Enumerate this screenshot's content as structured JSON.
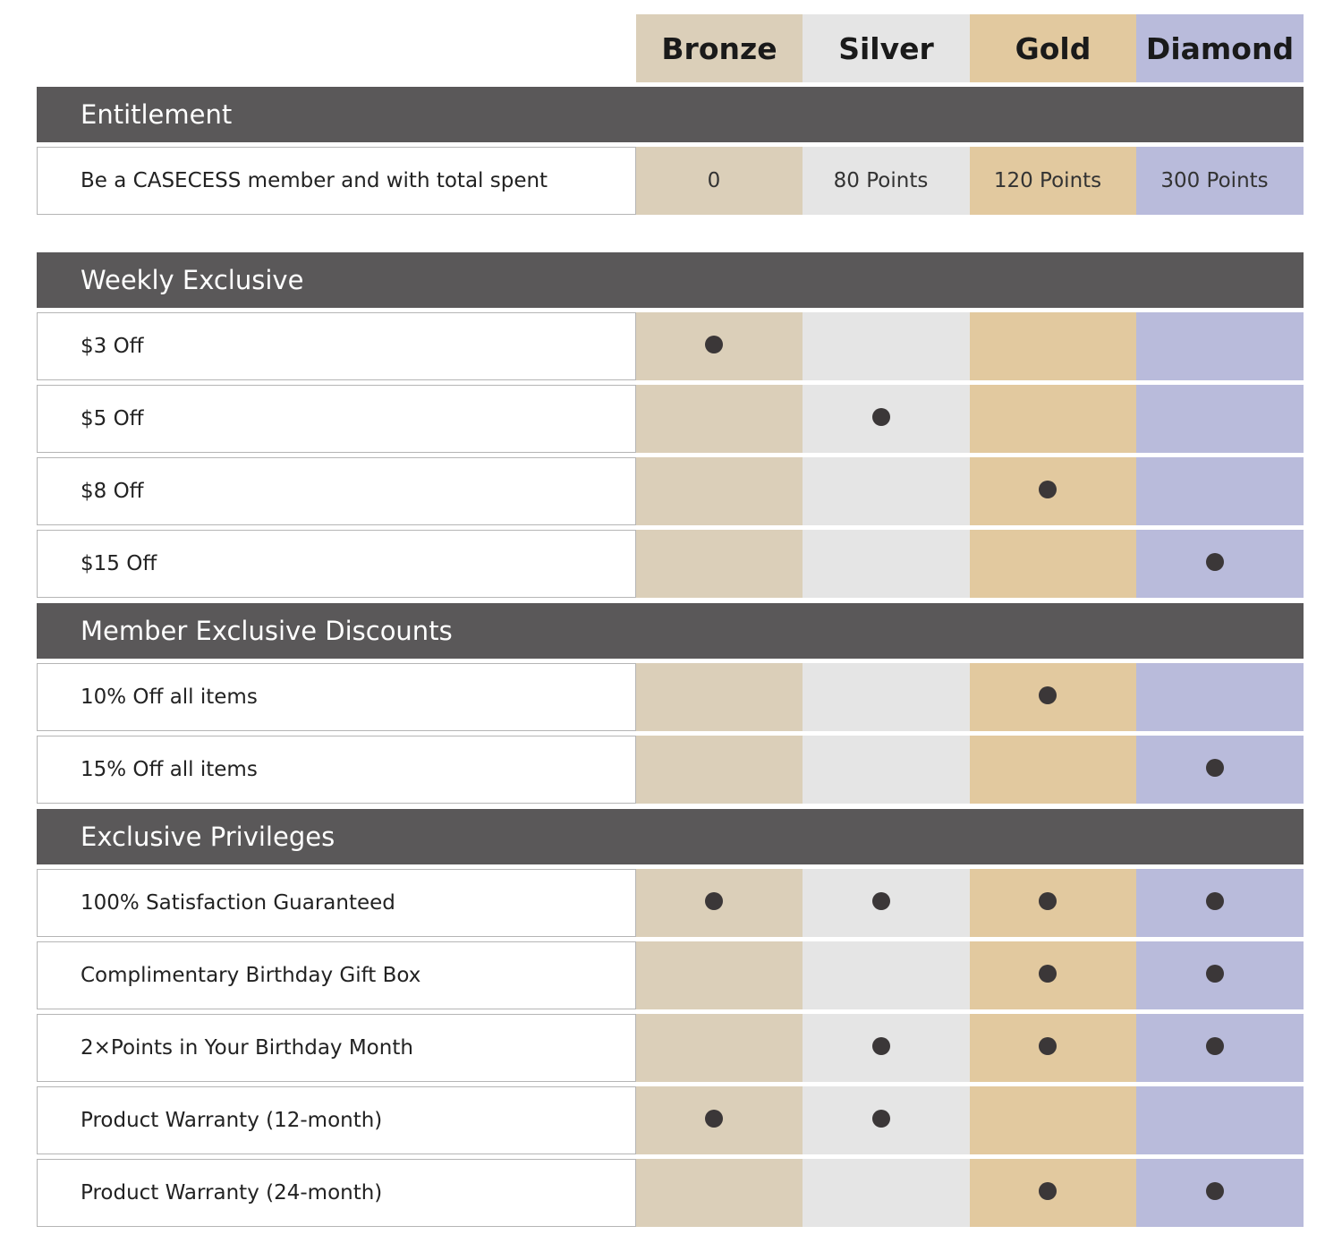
{
  "tiers": [
    "Bronze",
    "Silver",
    "Gold",
    "Diamond"
  ],
  "tier_colors": [
    "#dbcfb9",
    "#e5e5e5",
    "#e2c99f",
    "#b9bbdb"
  ],
  "sections": [
    {
      "title": "Entitlement",
      "rows": [
        {
          "label": "Be a CASECESS member and with total spent",
          "values": [
            "0",
            "80 Points",
            "120 Points",
            "300 Points"
          ]
        }
      ]
    },
    {
      "title": "Weekly Exclusive",
      "rows": [
        {
          "label": "$3 Off",
          "checks": [
            true,
            false,
            false,
            false
          ]
        },
        {
          "label": "$5 Off",
          "checks": [
            false,
            true,
            false,
            false
          ]
        },
        {
          "label": "$8 Off",
          "checks": [
            false,
            false,
            true,
            false
          ]
        },
        {
          "label": "$15 Off",
          "checks": [
            false,
            false,
            false,
            true
          ]
        }
      ]
    },
    {
      "title": "Member Exclusive Discounts",
      "rows": [
        {
          "label": "10% Off all items",
          "checks": [
            false,
            false,
            true,
            false
          ]
        },
        {
          "label": "15% Off all items",
          "checks": [
            false,
            false,
            false,
            true
          ]
        }
      ]
    },
    {
      "title": "Exclusive Privileges",
      "rows": [
        {
          "label": "100% Satisfaction Guaranteed",
          "checks": [
            true,
            true,
            true,
            true
          ]
        },
        {
          "label": "Complimentary Birthday Gift Box",
          "checks": [
            false,
            false,
            true,
            true
          ]
        },
        {
          "label": "2×Points in Your Birthday Month",
          "checks": [
            false,
            true,
            true,
            true
          ]
        },
        {
          "label": "Product Warranty (12-month)",
          "checks": [
            true,
            true,
            false,
            false
          ]
        },
        {
          "label": "Product Warranty (24-month)",
          "checks": [
            false,
            false,
            true,
            true
          ]
        }
      ]
    }
  ]
}
